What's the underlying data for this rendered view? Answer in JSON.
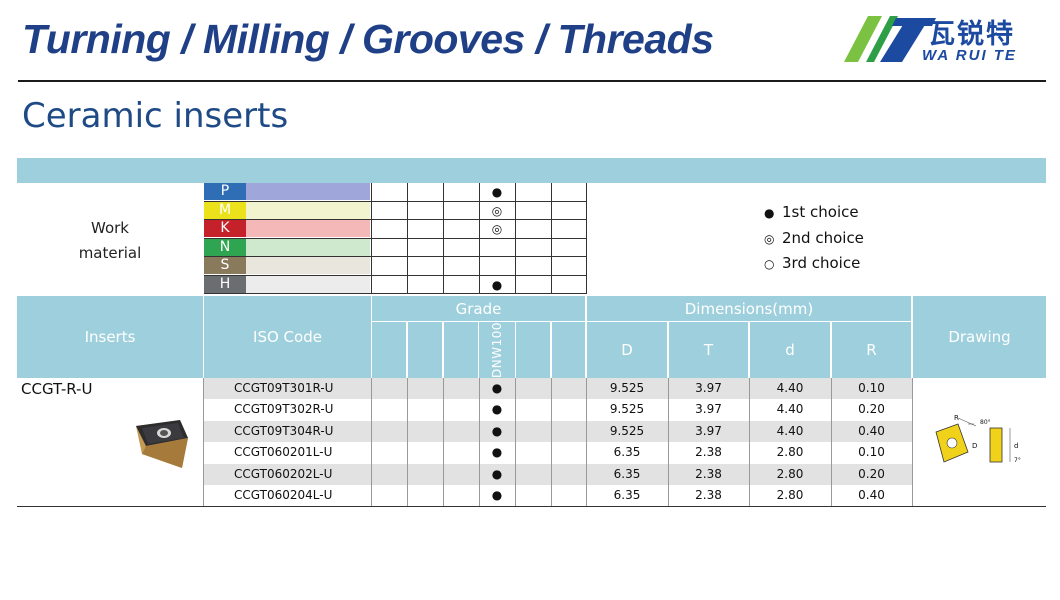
{
  "header": {
    "title": "Turning / Milling / Grooves / Threads",
    "logo_cn": "瓦锐特",
    "logo_en": "WA RUI TE"
  },
  "page_title": "Ceramic inserts",
  "work_material": {
    "label": "Work\nmaterial",
    "materials": [
      {
        "code": "P",
        "code_color": "#2f6db5",
        "bar_color": "#9fa6d9",
        "mark": "●"
      },
      {
        "code": "M",
        "code_color": "#ece21b",
        "bar_color": "#f2f4cf",
        "mark": "◎"
      },
      {
        "code": "K",
        "code_color": "#c4212a",
        "bar_color": "#f5b8b8",
        "mark": "◎"
      },
      {
        "code": "N",
        "code_color": "#2fa552",
        "bar_color": "#cfe9cf",
        "mark": ""
      },
      {
        "code": "S",
        "code_color": "#8a7a5c",
        "bar_color": "#e9e6dd",
        "mark": ""
      },
      {
        "code": "H",
        "code_color": "#6b6e70",
        "bar_color": "#ececec",
        "mark": "●"
      }
    ]
  },
  "legend": [
    {
      "symbol": "●",
      "text": "1st choice"
    },
    {
      "symbol": "◎",
      "text": "2nd choice"
    },
    {
      "symbol": "○",
      "text": "3rd choice"
    }
  ],
  "table": {
    "headers": {
      "inserts": "Inserts",
      "iso_code": "ISO Code",
      "grade": "Grade",
      "dimensions": "Dimensions(mm)",
      "drawing": "Drawing",
      "grade_name": "DNW100",
      "dims": [
        "D",
        "T",
        "d",
        "R"
      ]
    },
    "insert_name": "CCGT-R-U",
    "rows": [
      {
        "iso": "CCGT09T301R-U",
        "mark": "●",
        "D": "9.525",
        "T": "3.97",
        "d": "4.40",
        "R": "0.10"
      },
      {
        "iso": "CCGT09T302R-U",
        "mark": "●",
        "D": "9.525",
        "T": "3.97",
        "d": "4.40",
        "R": "0.20"
      },
      {
        "iso": "CCGT09T304R-U",
        "mark": "●",
        "D": "9.525",
        "T": "3.97",
        "d": "4.40",
        "R": "0.40"
      },
      {
        "iso": "CCGT060201L-U",
        "mark": "●",
        "D": "6.35",
        "T": "2.38",
        "d": "2.80",
        "R": "0.10"
      },
      {
        "iso": "CCGT060202L-U",
        "mark": "●",
        "D": "6.35",
        "T": "2.38",
        "d": "2.80",
        "R": "0.20"
      },
      {
        "iso": "CCGT060204L-U",
        "mark": "●",
        "D": "6.35",
        "T": "2.38",
        "d": "2.80",
        "R": "0.40"
      }
    ],
    "row_shade": "#e2e2e2"
  },
  "drawing_labels": {
    "R": "R",
    "angle": "80°",
    "D": "D",
    "d": "d",
    "clearance": "7°"
  }
}
